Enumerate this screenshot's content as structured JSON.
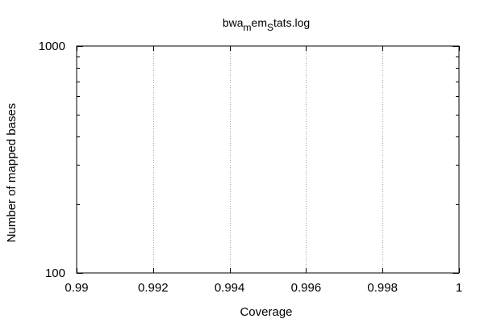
{
  "chart_data": {
    "type": "line",
    "title": {
      "parts": [
        "bwa",
        "m",
        "em",
        "S",
        "tats.log"
      ],
      "subscript": [
        false,
        true,
        false,
        true,
        false
      ]
    },
    "xlabel": "Coverage",
    "ylabel": "Number of mapped bases",
    "xlim": [
      0.99,
      1
    ],
    "ylim": [
      100,
      1000
    ],
    "yscale": "log",
    "x_ticks": [
      0.99,
      0.992,
      0.994,
      0.996,
      0.998,
      1
    ],
    "x_tick_labels": [
      "0.99",
      "0.992",
      "0.994",
      "0.996",
      "0.998",
      "1"
    ],
    "y_ticks": [
      100,
      1000
    ],
    "y_tick_labels": [
      "100",
      "1000"
    ],
    "grid": "x",
    "series": [],
    "colors": {
      "axis": "#000000",
      "grid": "#a0a0a0",
      "background": "#ffffff"
    }
  }
}
